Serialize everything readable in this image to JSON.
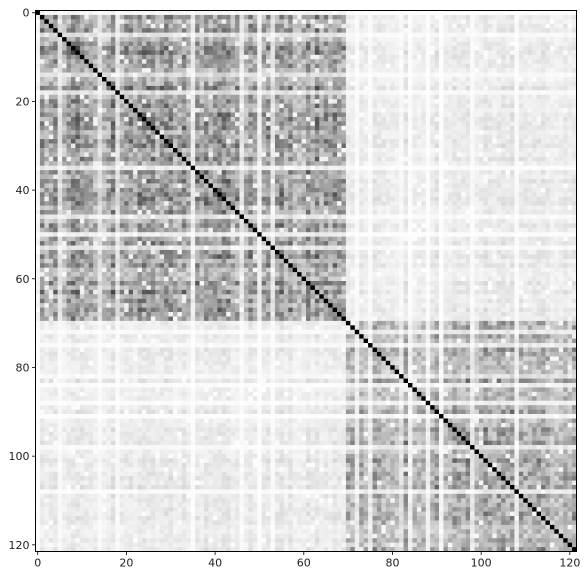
{
  "chart_data": {
    "type": "heatmap",
    "title": "",
    "xlabel": "",
    "ylabel": "",
    "matrix_size": 122,
    "colormap": "gray_r",
    "value_range": [
      0,
      1
    ],
    "diagonal_value": 1,
    "blocks": [
      {
        "name": "",
        "start": 0,
        "end": 69,
        "within_block_mean": 0.35
      },
      {
        "name": "",
        "start": 70,
        "end": 121,
        "within_block_mean": 0.32
      }
    ],
    "between_block_mean": 0.08,
    "xlim": [
      -0.5,
      121.5
    ],
    "ylim": [
      121.5,
      -0.5
    ],
    "x_ticks": [
      0,
      20,
      40,
      60,
      80,
      100,
      120
    ],
    "y_ticks": [
      0,
      20,
      40,
      60,
      80,
      100,
      120
    ],
    "x_tick_labels": [
      "0",
      "20",
      "40",
      "60",
      "80",
      "100",
      "120"
    ],
    "y_tick_labels": [
      "0",
      "20",
      "40",
      "60",
      "80",
      "100",
      "120"
    ],
    "grid": false,
    "legend": "none",
    "colors": {
      "low": "#ffffff",
      "high": "#000000",
      "frame": "#000000"
    }
  }
}
